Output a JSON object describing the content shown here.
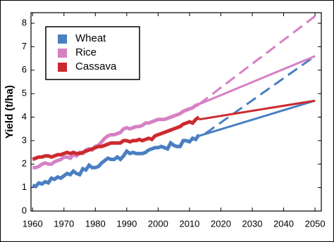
{
  "chart_data": {
    "type": "line",
    "ylabel": "Yield (t/ha)",
    "legend": "upper left",
    "xlim": [
      1959.5,
      2052
    ],
    "ylim": [
      0,
      8.45
    ],
    "xticks": [
      1960,
      1970,
      1980,
      1990,
      2000,
      2010,
      2020,
      2030,
      2040,
      2050
    ],
    "yticks": [
      0,
      1,
      2,
      3,
      4,
      5,
      6,
      7,
      8
    ],
    "x": [
      1960,
      1961,
      1962,
      1963,
      1964,
      1965,
      1966,
      1967,
      1968,
      1969,
      1970,
      1971,
      1972,
      1973,
      1974,
      1975,
      1976,
      1977,
      1978,
      1979,
      1980,
      1981,
      1982,
      1983,
      1984,
      1985,
      1986,
      1987,
      1988,
      1989,
      1990,
      1991,
      1992,
      1993,
      1994,
      1995,
      1996,
      1997,
      1998,
      1999,
      2000,
      2001,
      2002,
      2003,
      2004,
      2005,
      2006,
      2007,
      2008,
      2009,
      2010,
      2011,
      2012,
      2013
    ],
    "series": [
      {
        "name": "Wheat",
        "color": "#4a7fc1",
        "values": [
          1.1,
          1.05,
          1.2,
          1.15,
          1.25,
          1.2,
          1.4,
          1.35,
          1.45,
          1.4,
          1.5,
          1.6,
          1.55,
          1.7,
          1.6,
          1.55,
          1.8,
          1.75,
          1.95,
          1.85,
          1.85,
          1.9,
          2.05,
          2.15,
          2.25,
          2.2,
          2.2,
          2.3,
          2.2,
          2.35,
          2.55,
          2.45,
          2.5,
          2.45,
          2.45,
          2.45,
          2.5,
          2.6,
          2.65,
          2.7,
          2.7,
          2.75,
          2.7,
          2.65,
          2.9,
          2.8,
          2.75,
          2.75,
          3.0,
          3.0,
          2.95,
          3.1,
          3.05,
          3.25
        ],
        "trend": {
          "x": [
            2013,
            2050
          ],
          "values": [
            3.2,
            4.7
          ]
        },
        "projection": {
          "x": [
            2015,
            2050
          ],
          "values": [
            3.3,
            6.6
          ]
        }
      },
      {
        "name": "Rice",
        "color": "#d680c4",
        "values": [
          1.85,
          1.85,
          1.9,
          2.0,
          2.05,
          2.0,
          2.0,
          2.1,
          2.15,
          2.2,
          2.3,
          2.3,
          2.25,
          2.4,
          2.35,
          2.5,
          2.45,
          2.6,
          2.65,
          2.6,
          2.75,
          2.8,
          2.95,
          3.1,
          3.2,
          3.25,
          3.25,
          3.3,
          3.35,
          3.5,
          3.55,
          3.5,
          3.55,
          3.6,
          3.6,
          3.65,
          3.75,
          3.75,
          3.8,
          3.85,
          3.9,
          3.9,
          3.9,
          3.95,
          4.0,
          4.05,
          4.1,
          4.15,
          4.25,
          4.3,
          4.35,
          4.4,
          4.5,
          4.55
        ],
        "trend": {
          "x": [
            2013,
            2050
          ],
          "values": [
            4.55,
            6.6
          ]
        },
        "projection": {
          "x": [
            2013,
            2050
          ],
          "values": [
            4.55,
            8.3
          ]
        }
      },
      {
        "name": "Cassava",
        "color": "#cc2a2f",
        "values": [
          2.2,
          2.25,
          2.3,
          2.3,
          2.35,
          2.35,
          2.3,
          2.35,
          2.4,
          2.4,
          2.45,
          2.5,
          2.45,
          2.5,
          2.45,
          2.45,
          2.5,
          2.55,
          2.6,
          2.65,
          2.7,
          2.75,
          2.75,
          2.8,
          2.85,
          2.9,
          2.9,
          2.9,
          2.9,
          3.0,
          3.0,
          2.95,
          3.0,
          3.0,
          3.05,
          3.0,
          3.05,
          3.1,
          3.05,
          3.2,
          3.25,
          3.3,
          3.35,
          3.4,
          3.45,
          3.5,
          3.55,
          3.6,
          3.7,
          3.75,
          3.8,
          3.75,
          3.9,
          4.0
        ],
        "trend": {
          "x": [
            2013,
            2050
          ],
          "values": [
            3.9,
            4.7
          ]
        }
      }
    ]
  }
}
